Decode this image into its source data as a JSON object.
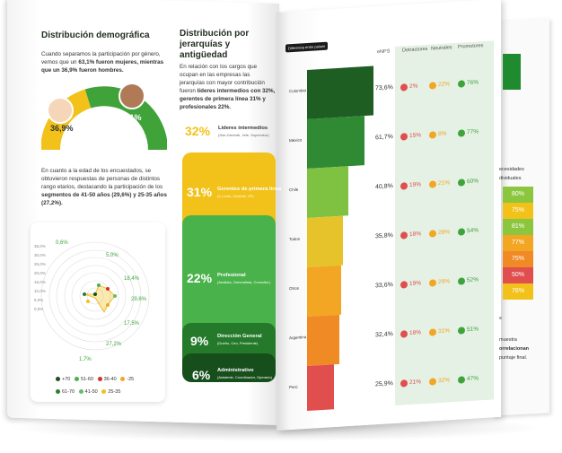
{
  "left": {
    "demo_title": "Distribución demográfica",
    "demo_text_1": "Cuando separamos la participación por género, vemos que un",
    "demo_bold_1": "63,1% fueron mujeres, mientras que un 36,9% fueron hombres.",
    "gauge_men": "36,9%",
    "gauge_women": "63,1%",
    "age_text": "En cuanto a la edad de los encuestados, se obtuvieron respuestas de personas de distintos rango etarios, destacando la participación de los",
    "age_bold": "segmentos de 41-50 años (29,6%) y 25-35 años (27,2%).",
    "radar_axis": [
      "35,0%",
      "30,0%",
      "25,0%",
      "20,0%",
      "15,0%",
      "10,0%",
      "5,0%",
      "0,0%"
    ],
    "radar_values": [
      "0,6%",
      "5,0%",
      "18,4%",
      "29,6%",
      "17,5%",
      "27,2%",
      "1,7%"
    ],
    "legend": [
      {
        "label": "+70",
        "color": "#1f4d1f"
      },
      {
        "label": "51-60",
        "color": "#4caf50"
      },
      {
        "label": "36-40",
        "color": "#d32f2f"
      },
      {
        "label": "-25",
        "color": "#f5a623"
      },
      {
        "label": "61-70",
        "color": "#2e7d32"
      },
      {
        "label": "41-50",
        "color": "#66bb6a"
      },
      {
        "label": "25-35",
        "color": "#f2c21a"
      }
    ],
    "hier_title": "Distribución por jerarquías y antigüedad",
    "hier_text": "En relación con los cargos que ocupan en las empresas las jerarquías con mayor contribución fueron",
    "hier_bold": "líderes intermedios con 32%, gerentes de primera línea 31% y profesionales 22%.",
    "levels": [
      {
        "pct": "32%",
        "label": "Líderes intermedios",
        "sub": "(Sub-Gerente, Jefe, Supervisor)"
      },
      {
        "pct": "31%",
        "label": "Gerentes de primera línea",
        "sub": "(C-Level, Gerente, VP)"
      },
      {
        "pct": "22%",
        "label": "Profesional",
        "sub": "(Analista, Generalista, Consultor)"
      },
      {
        "pct": "9%",
        "label": "Dirección General",
        "sub": "(Dueño, Ceo, Presidente)"
      },
      {
        "pct": "6%",
        "label": "Administrativo",
        "sub": "(Asistente, Coordinador, Operario)"
      }
    ]
  },
  "right": {
    "badge": "Diferencia entre países",
    "headers": [
      "eNPS",
      "Detractores",
      "Neutrales",
      "Promotores"
    ],
    "rows": [
      {
        "country": "Colombia",
        "enps": "73,6%",
        "det": "2%",
        "neu": "22%",
        "pro": "76%"
      },
      {
        "country": "México",
        "enps": "61,7%",
        "det": "15%",
        "neu": "8%",
        "pro": "77%"
      },
      {
        "country": "Chile",
        "enps": "40,8%",
        "det": "19%",
        "neu": "21%",
        "pro": "60%"
      },
      {
        "country": "Todos",
        "enps": "35,8%",
        "det": "18%",
        "neu": "28%",
        "pro": "54%"
      },
      {
        "country": "Otros",
        "enps": "33,6%",
        "det": "19%",
        "neu": "29%",
        "pro": "52%"
      },
      {
        "country": "Argentina",
        "enps": "32,4%",
        "det": "18%",
        "neu": "31%",
        "pro": "51%"
      },
      {
        "country": "Perú",
        "enps": "25,9%",
        "det": "21%",
        "neu": "32%",
        "pro": "47%"
      }
    ],
    "back_header": [
      "ecesidades",
      "dividuales"
    ],
    "back_values": [
      "80%",
      "75%",
      "81%",
      "77%",
      "75%",
      "50%",
      "76%"
    ],
    "back_text": [
      "s",
      "muestra",
      "orrelacionan",
      "puntaje final."
    ]
  },
  "colors": {
    "green_dark": "#1f5e22",
    "green": "#3fa33a",
    "yellow": "#f2c21a",
    "orange": "#f08a24",
    "red": "#e04e4e"
  }
}
